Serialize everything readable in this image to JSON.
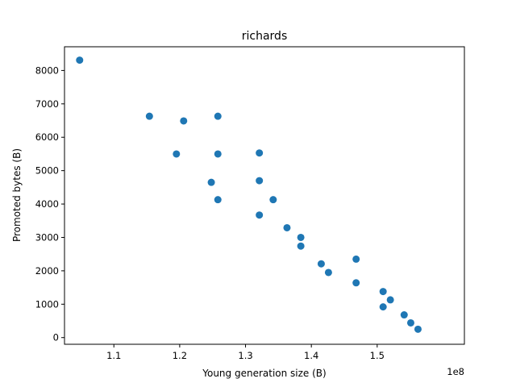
{
  "chart_data": {
    "type": "scatter",
    "title": "richards",
    "xlabel": "Young generation size (B)",
    "ylabel": "Promoted bytes (B)",
    "x_offset_label": "1e8",
    "xlim": [
      102500000.0,
      163250000.0
    ],
    "ylim": [
      -200,
      8710
    ],
    "x_ticks": [
      {
        "value": 110000000.0,
        "label": "1.1"
      },
      {
        "value": 120000000.0,
        "label": "1.2"
      },
      {
        "value": 130000000.0,
        "label": "1.3"
      },
      {
        "value": 140000000.0,
        "label": "1.4"
      },
      {
        "value": 150000000.0,
        "label": "1.5"
      }
    ],
    "y_ticks": [
      {
        "value": 0,
        "label": "0"
      },
      {
        "value": 1000,
        "label": "1000"
      },
      {
        "value": 2000,
        "label": "2000"
      },
      {
        "value": 3000,
        "label": "3000"
      },
      {
        "value": 4000,
        "label": "4000"
      },
      {
        "value": 5000,
        "label": "5000"
      },
      {
        "value": 6000,
        "label": "6000"
      },
      {
        "value": 7000,
        "label": "7000"
      },
      {
        "value": 8000,
        "label": "8000"
      }
    ],
    "grid": false,
    "marker_color": "#1f77b4",
    "points": [
      {
        "x": 104800000,
        "y": 8310
      },
      {
        "x": 115400000,
        "y": 6630
      },
      {
        "x": 120600000,
        "y": 6490
      },
      {
        "x": 125800000,
        "y": 6630
      },
      {
        "x": 119500000,
        "y": 5500
      },
      {
        "x": 125800000,
        "y": 5500
      },
      {
        "x": 132100000,
        "y": 5530
      },
      {
        "x": 124800000,
        "y": 4650
      },
      {
        "x": 125800000,
        "y": 4130
      },
      {
        "x": 132100000,
        "y": 4700
      },
      {
        "x": 134200000,
        "y": 4130
      },
      {
        "x": 132100000,
        "y": 3670
      },
      {
        "x": 136300000,
        "y": 3290
      },
      {
        "x": 138400000,
        "y": 3000
      },
      {
        "x": 138400000,
        "y": 2740
      },
      {
        "x": 141500000,
        "y": 2210
      },
      {
        "x": 142600000,
        "y": 1950
      },
      {
        "x": 146800000,
        "y": 2350
      },
      {
        "x": 146800000,
        "y": 1640
      },
      {
        "x": 150900000,
        "y": 1380
      },
      {
        "x": 152000000,
        "y": 1130
      },
      {
        "x": 150900000,
        "y": 920
      },
      {
        "x": 154100000,
        "y": 680
      },
      {
        "x": 155100000,
        "y": 440
      },
      {
        "x": 156200000,
        "y": 250
      }
    ]
  }
}
